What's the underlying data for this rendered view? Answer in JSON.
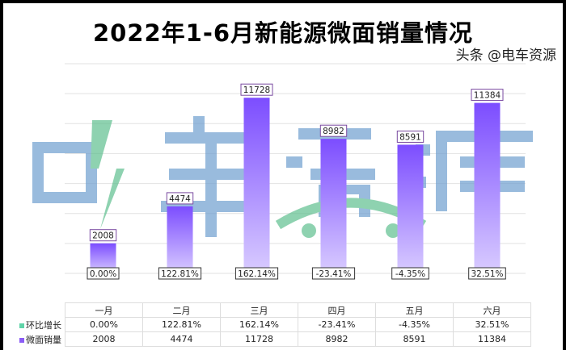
{
  "chart_data": {
    "type": "bar",
    "title": "2022年1-6月新能源微面销量情况",
    "categories": [
      "一月",
      "二月",
      "三月",
      "四月",
      "五月",
      "六月"
    ],
    "series": [
      {
        "name": "微面销量",
        "values": [
          2008,
          4474,
          11728,
          8982,
          8591,
          11384
        ],
        "color": "#8b5cf6"
      },
      {
        "name": "环比增长",
        "values": [
          "0.00%",
          "122.81%",
          "162.14%",
          "-23.41%",
          "-4.35%",
          "32.51%"
        ],
        "color": "#5fd3a8"
      }
    ],
    "ylim": [
      0,
      14000
    ],
    "ytick_step": 2000,
    "grid": true,
    "legend": "data-table"
  },
  "watermark": {
    "logo": "电车资源",
    "credit": "头条 @电车资源"
  }
}
